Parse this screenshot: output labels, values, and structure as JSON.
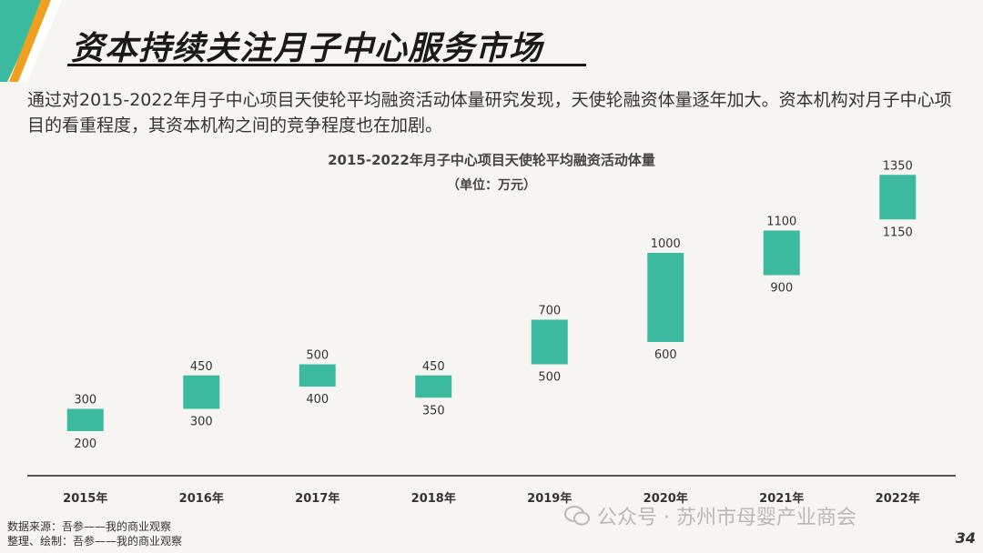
{
  "slide": {
    "title": "资本持续关注月子中心服务市场",
    "intro": "通过对2015-2022年月子中心项目天使轮平均融资活动体量研究发现，天使轮融资体量逐年加大。资本机构对月子中心项目的看重程度，其资本机构之间的竞争程度也在加剧。",
    "source_line1": "数据来源：吾参——我的商业观察",
    "source_line2": "整理、绘制：吾参——我的商业观察",
    "watermark": "公众号 · 苏州市母婴产业商会",
    "page_number": "34"
  },
  "colors": {
    "accent_teal": "#3bbaa0",
    "accent_orange": "#f0a020",
    "accent_green": "#4bb990",
    "bar": "#3bbaa0",
    "axis": "#555555"
  },
  "chart_data": {
    "type": "bar",
    "title": "2015-2022年月子中心项目天使轮平均融资活动体量",
    "subtitle": "（单位：万元）",
    "categories": [
      "2015年",
      "2016年",
      "2017年",
      "2018年",
      "2019年",
      "2020年",
      "2021年",
      "2022年"
    ],
    "series": [
      {
        "low": [
          200,
          300,
          400,
          350,
          500,
          600,
          900,
          1150
        ],
        "high": [
          300,
          450,
          500,
          450,
          700,
          1000,
          1100,
          1350
        ]
      }
    ],
    "ylim": [
      0,
      1500
    ],
    "grid": false,
    "legend": "none"
  }
}
